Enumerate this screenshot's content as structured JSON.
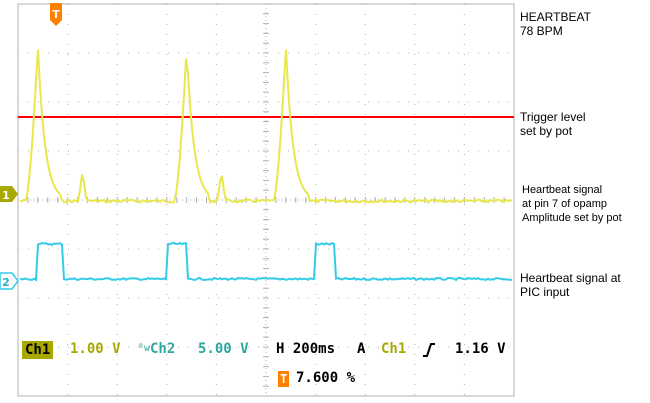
{
  "colors": {
    "background": "#ffffff",
    "grid": "#b0b0b0",
    "ch1": "#e8e84c",
    "ch1_label_bg": "#a8a800",
    "ch2": "#33cce8",
    "trigger_line": "#ff0000",
    "trigger_marker": "#ff7f00"
  },
  "scope": {
    "trigger_marker_label": "T",
    "ch1_marker_label": "1",
    "ch2_marker_label": "2"
  },
  "annotations": {
    "heartbeat": "HEARTBEAT\n78 BPM",
    "trigger": "Trigger level\nset by pot",
    "ch1_signal": "Heartbeat signal\nat pin 7 of opamp\nAmplitude set by pot",
    "ch2_signal": "Heartbeat signal at\nPIC input"
  },
  "status": {
    "ch1_label": "Ch1",
    "ch1_scale": "1.00 V",
    "bw_symbol": "ᴮw",
    "ch2_label": "Ch2",
    "ch2_scale": "5.00 V",
    "horizontal": "H 200ms",
    "trigger_mode": "A",
    "trigger_source": "Ch1",
    "trigger_slope_icon": "rising-edge",
    "trigger_level": "1.16 V",
    "trigger_position_label": "T",
    "trigger_position": "7.600 %"
  },
  "waveforms": {
    "ch1_baseline_level": 0,
    "ch1_peak_level": 1.0,
    "ch1_peak_times_div": [
      0.4,
      3.4,
      5.4
    ],
    "ch1_secondary_bump_times_div": [
      1.3,
      4.1
    ],
    "ch2_low_level": 0,
    "ch2_high_level": 1,
    "ch2_pulses_div": [
      [
        0.4,
        0.9
      ],
      [
        3.0,
        3.4
      ],
      [
        6.0,
        6.4
      ]
    ]
  }
}
